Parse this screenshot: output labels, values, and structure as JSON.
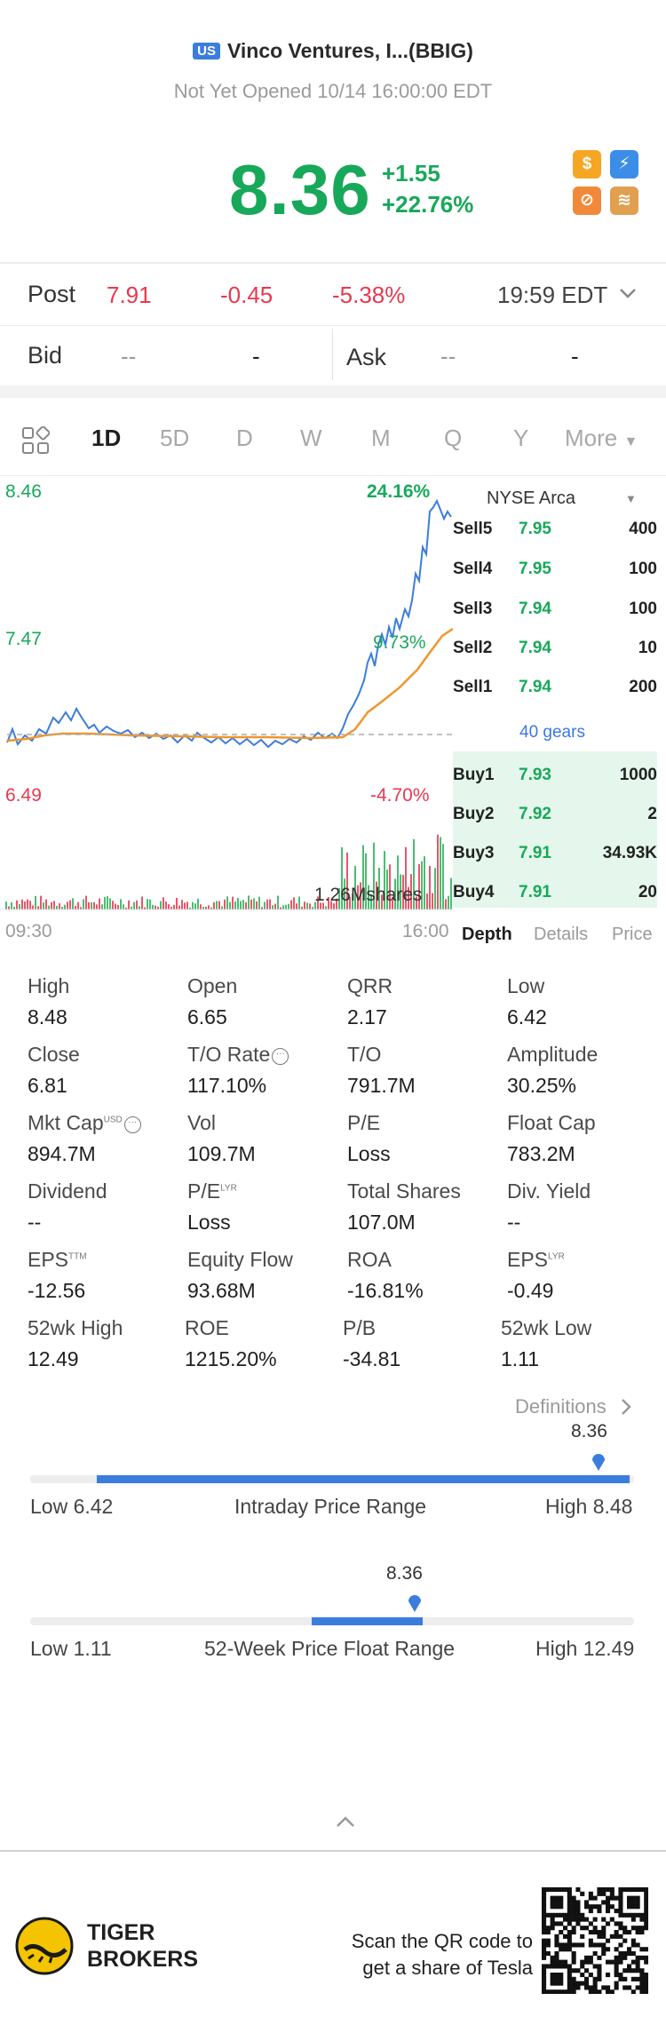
{
  "header": {
    "market_badge": "US",
    "title": "Vinco Ventures, I...(BBIG)",
    "status": "Not Yet Opened 10/14 16:00:00 EDT",
    "price": "8.36",
    "change": "+1.55",
    "change_pct": "+22.76%"
  },
  "post": {
    "label": "Post",
    "price": "7.91",
    "change": "-0.45",
    "change_pct": "-5.38%",
    "time": "19:59 EDT"
  },
  "bid_ask": {
    "bid_label": "Bid",
    "bid_price": "--",
    "bid_size": "-",
    "ask_label": "Ask",
    "ask_price": "--",
    "ask_size": "-"
  },
  "tabs": [
    "1D",
    "5D",
    "D",
    "W",
    "M",
    "Q",
    "Y",
    "More"
  ],
  "active_tab": "1D",
  "chart": {
    "y_high": "8.46",
    "y_mid": "7.47",
    "y_low": "6.49",
    "pct_high": "24.16%",
    "pct_mid": "9.73%",
    "pct_low": "-4.70%",
    "volume_label": "1.26Mshares",
    "time_start": "09:30",
    "time_end": "16:00"
  },
  "orderbook": {
    "exchange": "NYSE Arca",
    "sells": [
      {
        "label": "Sell5",
        "price": "7.95",
        "size": "400"
      },
      {
        "label": "Sell4",
        "price": "7.95",
        "size": "100"
      },
      {
        "label": "Sell3",
        "price": "7.94",
        "size": "100"
      },
      {
        "label": "Sell2",
        "price": "7.94",
        "size": "10"
      },
      {
        "label": "Sell1",
        "price": "7.94",
        "size": "200"
      }
    ],
    "gears": "40 gears",
    "buys": [
      {
        "label": "Buy1",
        "price": "7.93",
        "size": "1000"
      },
      {
        "label": "Buy2",
        "price": "7.92",
        "size": "2"
      },
      {
        "label": "Buy3",
        "price": "7.91",
        "size": "34.93K"
      },
      {
        "label": "Buy4",
        "price": "7.91",
        "size": "20"
      }
    ],
    "tabs": [
      "Depth",
      "Details",
      "Price"
    ]
  },
  "stats": [
    {
      "label": "High",
      "value": "8.48"
    },
    {
      "label": "Open",
      "value": "6.65"
    },
    {
      "label": "QRR",
      "value": "2.17"
    },
    {
      "label": "Low",
      "value": "6.42"
    },
    {
      "label": "Close",
      "value": "6.81"
    },
    {
      "label": "T/O Rate",
      "value": "117.10%"
    },
    {
      "label": "T/O",
      "value": "791.7M"
    },
    {
      "label": "Amplitude",
      "value": "30.25%"
    },
    {
      "label": "Mkt Cap",
      "value": "894.7M",
      "sup": "USD"
    },
    {
      "label": "Vol",
      "value": "109.7M"
    },
    {
      "label": "P/E",
      "value": "Loss"
    },
    {
      "label": "Float Cap",
      "value": "783.2M"
    },
    {
      "label": "Dividend",
      "value": "--"
    },
    {
      "label": "P/E",
      "value": "Loss",
      "sup": "LYR"
    },
    {
      "label": "Total Shares",
      "value": "107.0M"
    },
    {
      "label": "Div. Yield",
      "value": "--"
    },
    {
      "label": "EPS",
      "value": "-12.56",
      "sup": "TTM"
    },
    {
      "label": "Equity Flow",
      "value": "93.68M"
    },
    {
      "label": "ROA",
      "value": "-16.81%"
    },
    {
      "label": "EPS",
      "value": "-0.49",
      "sup": "LYR"
    },
    {
      "label": "52wk High",
      "value": "12.49"
    },
    {
      "label": "ROE",
      "value": "1215.20%"
    },
    {
      "label": "P/B",
      "value": "-34.81"
    },
    {
      "label": "52wk Low",
      "value": "1.11"
    }
  ],
  "definitions": "Definitions",
  "intraday_range": {
    "label": "Intraday Price Range",
    "low": "Low 6.42",
    "high": "High 8.48",
    "current": "8.36"
  },
  "week52_range": {
    "label": "52-Week Price Float Range",
    "low": "Low 1.11",
    "high": "High 12.49",
    "current": "8.36"
  },
  "footer": {
    "brand_line1": "TIGER",
    "brand_line2": "BROKERS",
    "cta_line1": "Scan the QR code to",
    "cta_line2": "get a share of Tesla"
  },
  "colors": {
    "up": "#18a85a",
    "down": "#e8384f",
    "accent": "#3b7ddd",
    "avg_line": "#f0962c"
  }
}
